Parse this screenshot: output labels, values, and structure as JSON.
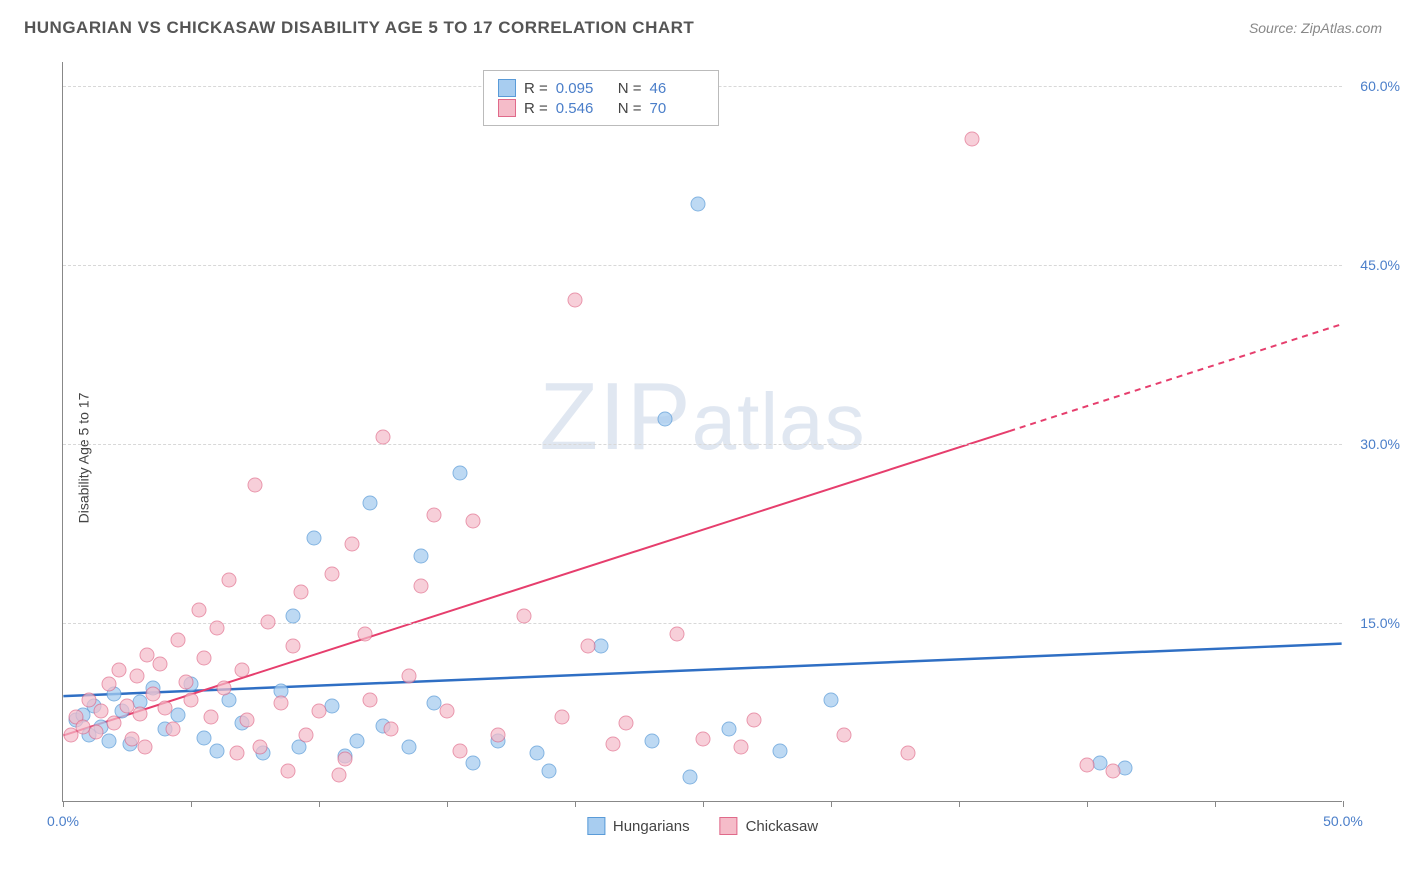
{
  "header": {
    "title": "HUNGARIAN VS CHICKASAW DISABILITY AGE 5 TO 17 CORRELATION CHART",
    "source": "Source: ZipAtlas.com",
    "watermark": "ZIPatlas"
  },
  "chart": {
    "type": "scatter",
    "ylabel": "Disability Age 5 to 17",
    "background_color": "#ffffff",
    "grid_color": "#d8d8d8",
    "axis_color": "#888888",
    "label_color": "#4a7ec9",
    "xlim": [
      0,
      50
    ],
    "ylim": [
      0,
      62
    ],
    "yticks": [
      15,
      30,
      45,
      60
    ],
    "ytick_labels": [
      "15.0%",
      "30.0%",
      "45.0%",
      "60.0%"
    ],
    "xticks": [
      0,
      5,
      10,
      15,
      20,
      25,
      30,
      35,
      40,
      45,
      50
    ],
    "xtick_labels": {
      "0": "0.0%",
      "50": "50.0%"
    },
    "point_radius": 7.5,
    "series": [
      {
        "name": "Hungarians",
        "fill_color": "#a8cdf0",
        "stroke_color": "#5a9bd8",
        "opacity": 0.75,
        "r": 0.095,
        "n": 46,
        "trend": {
          "x1": 0,
          "y1": 8.8,
          "x2": 50,
          "y2": 13.2,
          "color": "#2f6fc4",
          "width": 2.5,
          "solid_until_x": 50
        },
        "points": [
          [
            0.5,
            6.8
          ],
          [
            0.8,
            7.2
          ],
          [
            1.0,
            5.5
          ],
          [
            1.2,
            8.0
          ],
          [
            1.5,
            6.2
          ],
          [
            1.8,
            5.0
          ],
          [
            2.0,
            9.0
          ],
          [
            2.3,
            7.5
          ],
          [
            2.6,
            4.8
          ],
          [
            3.0,
            8.3
          ],
          [
            3.5,
            9.5
          ],
          [
            4.0,
            6.0
          ],
          [
            4.5,
            7.2
          ],
          [
            5.0,
            9.8
          ],
          [
            5.5,
            5.3
          ],
          [
            6.0,
            4.2
          ],
          [
            6.5,
            8.5
          ],
          [
            7.0,
            6.5
          ],
          [
            7.8,
            4.0
          ],
          [
            8.5,
            9.2
          ],
          [
            9.0,
            15.5
          ],
          [
            9.2,
            4.5
          ],
          [
            9.8,
            22.0
          ],
          [
            10.5,
            8.0
          ],
          [
            11.0,
            3.8
          ],
          [
            11.5,
            5.0
          ],
          [
            12.0,
            25.0
          ],
          [
            12.5,
            6.3
          ],
          [
            13.5,
            4.5
          ],
          [
            14.0,
            20.5
          ],
          [
            14.5,
            8.2
          ],
          [
            15.5,
            27.5
          ],
          [
            16.0,
            3.2
          ],
          [
            17.0,
            5.0
          ],
          [
            18.5,
            4.0
          ],
          [
            19.0,
            2.5
          ],
          [
            21.0,
            13.0
          ],
          [
            23.0,
            5.0
          ],
          [
            23.5,
            32.0
          ],
          [
            24.5,
            2.0
          ],
          [
            24.8,
            50.0
          ],
          [
            26.0,
            6.0
          ],
          [
            28.0,
            4.2
          ],
          [
            30.0,
            8.5
          ],
          [
            40.5,
            3.2
          ],
          [
            41.5,
            2.8
          ]
        ]
      },
      {
        "name": "Chickasaw",
        "fill_color": "#f5bcc9",
        "stroke_color": "#e06a8a",
        "opacity": 0.7,
        "r": 0.546,
        "n": 70,
        "trend": {
          "x1": 0,
          "y1": 5.5,
          "x2": 50,
          "y2": 40.0,
          "color": "#e63e6d",
          "width": 2,
          "solid_until_x": 37
        },
        "points": [
          [
            0.3,
            5.5
          ],
          [
            0.5,
            7.0
          ],
          [
            0.8,
            6.2
          ],
          [
            1.0,
            8.5
          ],
          [
            1.3,
            5.8
          ],
          [
            1.5,
            7.5
          ],
          [
            1.8,
            9.8
          ],
          [
            2.0,
            6.5
          ],
          [
            2.2,
            11.0
          ],
          [
            2.5,
            8.0
          ],
          [
            2.7,
            5.2
          ],
          [
            2.9,
            10.5
          ],
          [
            3.0,
            7.3
          ],
          [
            3.3,
            12.2
          ],
          [
            3.5,
            9.0
          ],
          [
            3.8,
            11.5
          ],
          [
            4.0,
            7.8
          ],
          [
            4.3,
            6.0
          ],
          [
            4.5,
            13.5
          ],
          [
            4.8,
            10.0
          ],
          [
            5.0,
            8.5
          ],
          [
            5.3,
            16.0
          ],
          [
            5.5,
            12.0
          ],
          [
            5.8,
            7.0
          ],
          [
            6.0,
            14.5
          ],
          [
            6.3,
            9.5
          ],
          [
            6.5,
            18.5
          ],
          [
            7.0,
            11.0
          ],
          [
            7.2,
            6.8
          ],
          [
            7.5,
            26.5
          ],
          [
            7.7,
            4.5
          ],
          [
            8.0,
            15.0
          ],
          [
            8.5,
            8.2
          ],
          [
            9.0,
            13.0
          ],
          [
            9.3,
            17.5
          ],
          [
            9.5,
            5.5
          ],
          [
            10.0,
            7.5
          ],
          [
            10.5,
            19.0
          ],
          [
            11.0,
            3.5
          ],
          [
            11.3,
            21.5
          ],
          [
            11.8,
            14.0
          ],
          [
            12.0,
            8.5
          ],
          [
            12.5,
            30.5
          ],
          [
            12.8,
            6.0
          ],
          [
            13.5,
            10.5
          ],
          [
            14.0,
            18.0
          ],
          [
            14.5,
            24.0
          ],
          [
            15.0,
            7.5
          ],
          [
            15.5,
            4.2
          ],
          [
            16.0,
            23.5
          ],
          [
            17.0,
            5.5
          ],
          [
            18.0,
            15.5
          ],
          [
            19.5,
            7.0
          ],
          [
            20.0,
            42.0
          ],
          [
            20.5,
            13.0
          ],
          [
            21.5,
            4.8
          ],
          [
            22.0,
            6.5
          ],
          [
            24.0,
            14.0
          ],
          [
            25.0,
            5.2
          ],
          [
            26.5,
            4.5
          ],
          [
            27.0,
            6.8
          ],
          [
            30.5,
            5.5
          ],
          [
            33.0,
            4.0
          ],
          [
            35.5,
            55.5
          ],
          [
            40.0,
            3.0
          ],
          [
            41.0,
            2.5
          ],
          [
            3.2,
            4.5
          ],
          [
            6.8,
            4.0
          ],
          [
            8.8,
            2.5
          ],
          [
            10.8,
            2.2
          ]
        ]
      }
    ],
    "stats_box": {
      "r_label": "R =",
      "n_label": "N ="
    },
    "legend": [
      "Hungarians",
      "Chickasaw"
    ]
  }
}
